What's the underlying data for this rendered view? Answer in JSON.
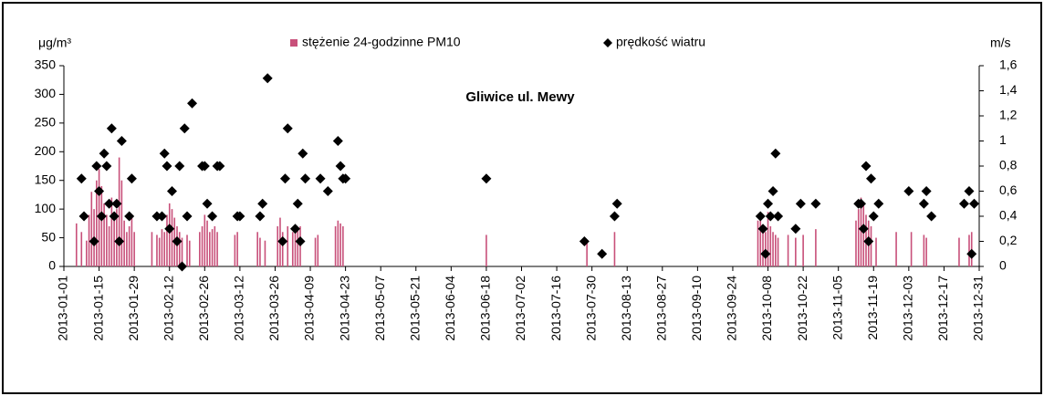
{
  "chart_data": {
    "type": "bar",
    "title": "Gliwice ul. Mewy",
    "y_label": "μg/m³",
    "y2_label": "m/s",
    "xlim": [
      "2013-01-01",
      "2013-12-31"
    ],
    "xticks": [
      "2013-01-01",
      "2013-01-15",
      "2013-01-29",
      "2013-02-12",
      "2013-02-26",
      "2013-03-12",
      "2013-03-26",
      "2013-04-09",
      "2013-04-23",
      "2013-05-07",
      "2013-05-21",
      "2013-06-04",
      "2013-06-18",
      "2013-07-02",
      "2013-07-16",
      "2013-07-30",
      "2013-08-13",
      "2013-08-27",
      "2013-09-10",
      "2013-09-24",
      "2013-10-08",
      "2013-10-22",
      "2013-11-05",
      "2013-11-19",
      "2013-12-03",
      "2013-12-17",
      "2013-12-31"
    ],
    "ylim": [
      0,
      350
    ],
    "yticks": [
      0,
      50,
      100,
      150,
      200,
      250,
      300,
      350
    ],
    "y2lim": [
      0,
      1.6
    ],
    "y2ticks": [
      0,
      {
        "value": 0.2,
        "label": "0,2"
      },
      {
        "value": 0.4,
        "label": "0,4"
      },
      {
        "value": 0.6,
        "label": "0,6"
      },
      {
        "value": 0.8,
        "label": "0,8"
      },
      1,
      {
        "value": 1.2,
        "label": "1,2"
      },
      {
        "value": 1.4,
        "label": "1,4"
      },
      {
        "value": 1.6,
        "label": "1,6"
      }
    ],
    "series": [
      {
        "name": "stężenie 24-godzinne PM10",
        "type": "bar",
        "color": "#c8507a",
        "x": [
          "2013-01-06",
          "2013-01-08",
          "2013-01-10",
          "2013-01-11",
          "2013-01-12",
          "2013-01-13",
          "2013-01-14",
          "2013-01-15",
          "2013-01-16",
          "2013-01-17",
          "2013-01-18",
          "2013-01-19",
          "2013-01-20",
          "2013-01-21",
          "2013-01-22",
          "2013-01-23",
          "2013-01-24",
          "2013-01-25",
          "2013-01-26",
          "2013-01-27",
          "2013-01-28",
          "2013-01-29",
          "2013-02-05",
          "2013-02-07",
          "2013-02-08",
          "2013-02-09",
          "2013-02-10",
          "2013-02-11",
          "2013-02-12",
          "2013-02-13",
          "2013-02-14",
          "2013-02-15",
          "2013-02-16",
          "2013-02-17",
          "2013-02-19",
          "2013-02-20",
          "2013-02-24",
          "2013-02-25",
          "2013-02-26",
          "2013-02-27",
          "2013-02-28",
          "2013-03-01",
          "2013-03-02",
          "2013-03-03",
          "2013-03-10",
          "2013-03-11",
          "2013-03-19",
          "2013-03-20",
          "2013-03-22",
          "2013-03-27",
          "2013-03-28",
          "2013-03-29",
          "2013-03-31",
          "2013-04-02",
          "2013-04-03",
          "2013-04-04",
          "2013-04-05",
          "2013-04-11",
          "2013-04-12",
          "2013-04-19",
          "2013-04-20",
          "2013-04-21",
          "2013-04-22",
          "2013-06-18",
          "2013-07-28",
          "2013-08-08",
          "2013-10-04",
          "2013-10-05",
          "2013-10-06",
          "2013-10-07",
          "2013-10-08",
          "2013-10-09",
          "2013-10-10",
          "2013-10-11",
          "2013-10-12",
          "2013-10-16",
          "2013-10-19",
          "2013-10-22",
          "2013-10-27",
          "2013-11-12",
          "2013-11-13",
          "2013-11-14",
          "2013-11-15",
          "2013-11-16",
          "2013-11-17",
          "2013-11-18",
          "2013-11-20",
          "2013-11-28",
          "2013-12-04",
          "2013-12-09",
          "2013-12-10",
          "2013-12-23",
          "2013-12-27",
          "2013-12-28"
        ],
        "values": [
          75,
          60,
          45,
          90,
          130,
          100,
          150,
          170,
          140,
          110,
          90,
          70,
          120,
          80,
          100,
          190,
          150,
          80,
          60,
          70,
          85,
          60,
          60,
          55,
          50,
          65,
          60,
          90,
          110,
          100,
          85,
          70,
          60,
          50,
          55,
          45,
          60,
          70,
          90,
          80,
          60,
          65,
          70,
          60,
          55,
          60,
          60,
          50,
          45,
          70,
          85,
          60,
          70,
          60,
          70,
          65,
          70,
          50,
          55,
          70,
          80,
          75,
          70,
          55,
          45,
          60,
          80,
          90,
          70,
          60,
          95,
          70,
          60,
          55,
          50,
          55,
          50,
          55,
          65,
          80,
          100,
          120,
          110,
          90,
          80,
          70,
          50,
          60,
          60,
          55,
          50,
          50,
          55,
          60
        ]
      },
      {
        "name": "prędkość wiatru",
        "type": "scatter",
        "axis": "y2",
        "color": "#000000",
        "x": [
          "2013-01-08",
          "2013-01-09",
          "2013-01-13",
          "2013-01-14",
          "2013-01-15",
          "2013-01-16",
          "2013-01-17",
          "2013-01-18",
          "2013-01-19",
          "2013-01-20",
          "2013-01-21",
          "2013-01-22",
          "2013-01-23",
          "2013-01-24",
          "2013-01-27",
          "2013-01-28",
          "2013-02-07",
          "2013-02-09",
          "2013-02-10",
          "2013-02-11",
          "2013-02-12",
          "2013-02-13",
          "2013-02-15",
          "2013-02-16",
          "2013-02-17",
          "2013-02-18",
          "2013-02-19",
          "2013-02-21",
          "2013-02-25",
          "2013-02-26",
          "2013-02-27",
          "2013-03-01",
          "2013-03-03",
          "2013-03-04",
          "2013-03-11",
          "2013-03-12",
          "2013-03-20",
          "2013-03-21",
          "2013-03-23",
          "2013-03-29",
          "2013-03-30",
          "2013-03-31",
          "2013-04-03",
          "2013-04-04",
          "2013-04-05",
          "2013-04-06",
          "2013-04-07",
          "2013-04-13",
          "2013-04-16",
          "2013-04-20",
          "2013-04-21",
          "2013-04-22",
          "2013-04-23",
          "2013-06-18",
          "2013-07-27",
          "2013-08-03",
          "2013-08-08",
          "2013-08-09",
          "2013-10-05",
          "2013-10-06",
          "2013-10-07",
          "2013-10-08",
          "2013-10-09",
          "2013-10-10",
          "2013-10-11",
          "2013-10-12",
          "2013-10-19",
          "2013-10-21",
          "2013-10-27",
          "2013-11-13",
          "2013-11-14",
          "2013-11-15",
          "2013-11-16",
          "2013-11-17",
          "2013-11-18",
          "2013-11-19",
          "2013-11-21",
          "2013-12-03",
          "2013-12-09",
          "2013-12-10",
          "2013-12-12",
          "2013-12-25",
          "2013-12-27",
          "2013-12-28",
          "2013-12-29"
        ],
        "values": [
          0.7,
          0.4,
          0.2,
          0.8,
          0.6,
          0.4,
          0.9,
          0.8,
          0.5,
          1.1,
          0.4,
          0.5,
          0.2,
          1.0,
          0.4,
          0.7,
          0.4,
          0.4,
          0.9,
          0.8,
          0.3,
          0.6,
          0.2,
          0.8,
          0.0,
          1.1,
          0.4,
          1.3,
          0.8,
          0.8,
          0.5,
          0.4,
          0.8,
          0.8,
          0.4,
          0.4,
          0.4,
          0.5,
          1.5,
          0.2,
          0.7,
          1.1,
          0.3,
          0.5,
          0.2,
          0.9,
          0.7,
          0.7,
          0.6,
          1.0,
          0.8,
          0.7,
          0.7,
          0.7,
          0.2,
          0.1,
          0.4,
          0.5,
          0.4,
          0.3,
          0.1,
          0.5,
          0.4,
          0.6,
          0.9,
          0.4,
          0.3,
          0.5,
          0.5,
          0.5,
          0.5,
          0.3,
          0.8,
          0.2,
          0.7,
          0.4,
          0.5,
          0.6,
          0.5,
          0.6,
          0.4,
          0.5,
          0.6,
          0.1,
          0.5
        ]
      }
    ],
    "legend": "top"
  }
}
